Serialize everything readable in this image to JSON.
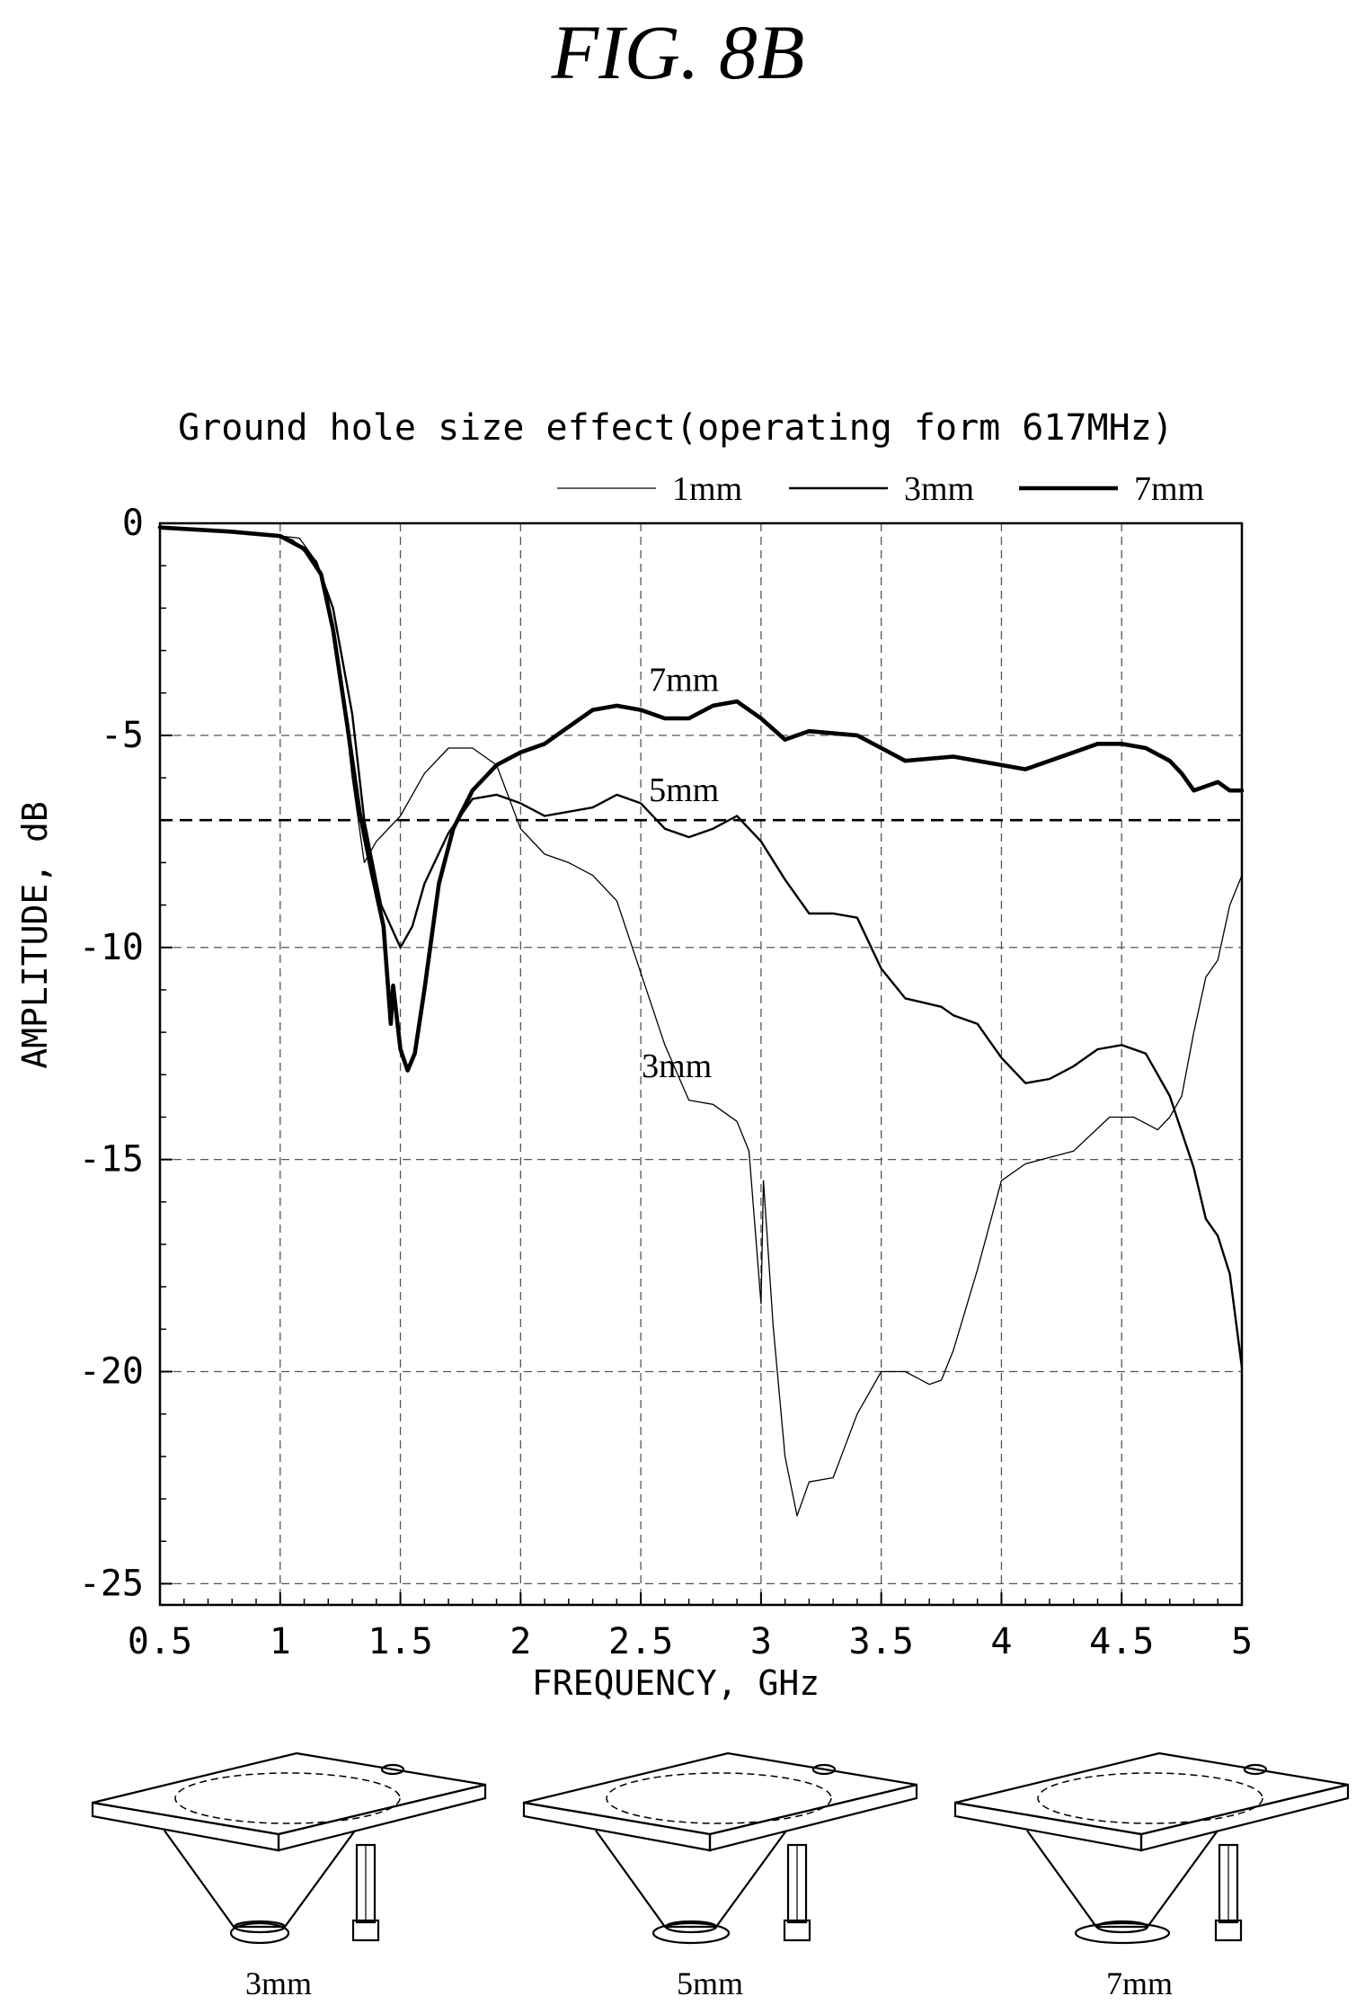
{
  "figure_label": "FIG. 8B",
  "chart_data": {
    "type": "line",
    "title": "Ground hole size effect(operating form 617MHz)",
    "xlabel": "FREQUENCY, GHz",
    "ylabel": "AMPLITUDE, dB",
    "xlim": [
      0.5,
      5
    ],
    "ylim": [
      -25.5,
      0
    ],
    "x_ticks": [
      0.5,
      1,
      1.5,
      2,
      2.5,
      3,
      3.5,
      4,
      4.5,
      5
    ],
    "x_tick_labels": [
      "0.5",
      "1",
      "1.5",
      "2",
      "2.5",
      "3",
      "3.5",
      "4",
      "4.5",
      "5"
    ],
    "y_ticks": [
      0,
      -5,
      -10,
      -15,
      -20,
      -25
    ],
    "y_tick_labels": [
      "0",
      "-5",
      "-10",
      "-15",
      "-20",
      "-25"
    ],
    "grid": true,
    "legend_position": "top-right",
    "legend": [
      {
        "label": "1mm",
        "weight": "thin"
      },
      {
        "label": "3mm",
        "weight": "medium"
      },
      {
        "label": "7mm",
        "weight": "thick"
      }
    ],
    "reference_line": {
      "y": -7,
      "style": "dashed"
    },
    "annotations": [
      {
        "text": "7mm",
        "x": 2.9,
        "y": -3.7
      },
      {
        "text": "5mm",
        "x": 2.9,
        "y": -6.3
      },
      {
        "text": "3mm",
        "x": 2.87,
        "y": -12.8
      }
    ],
    "series": [
      {
        "name": "1mm",
        "weight": "thin",
        "points": [
          [
            0.5,
            -0.1
          ],
          [
            0.8,
            -0.2
          ],
          [
            1.0,
            -0.3
          ],
          [
            1.08,
            -0.35
          ],
          [
            1.15,
            -0.9
          ],
          [
            1.2,
            -1.8
          ],
          [
            1.25,
            -3.5
          ],
          [
            1.3,
            -6.0
          ],
          [
            1.35,
            -8.0
          ],
          [
            1.4,
            -7.5
          ],
          [
            1.5,
            -6.9
          ],
          [
            1.6,
            -5.9
          ],
          [
            1.7,
            -5.3
          ],
          [
            1.8,
            -5.3
          ],
          [
            1.9,
            -5.7
          ],
          [
            2.0,
            -7.2
          ],
          [
            2.1,
            -7.8
          ],
          [
            2.2,
            -8.0
          ],
          [
            2.3,
            -8.3
          ],
          [
            2.4,
            -8.9
          ],
          [
            2.5,
            -10.6
          ],
          [
            2.6,
            -12.3
          ],
          [
            2.7,
            -13.6
          ],
          [
            2.8,
            -13.7
          ],
          [
            2.9,
            -14.1
          ],
          [
            2.95,
            -14.8
          ],
          [
            3.0,
            -18.4
          ],
          [
            3.01,
            -15.5
          ],
          [
            3.05,
            -18.9
          ],
          [
            3.1,
            -22.0
          ],
          [
            3.15,
            -23.4
          ],
          [
            3.2,
            -22.6
          ],
          [
            3.3,
            -22.5
          ],
          [
            3.4,
            -21.0
          ],
          [
            3.5,
            -20.0
          ],
          [
            3.6,
            -20.0
          ],
          [
            3.7,
            -20.3
          ],
          [
            3.75,
            -20.2
          ],
          [
            3.8,
            -19.5
          ],
          [
            3.9,
            -17.6
          ],
          [
            4.0,
            -15.5
          ],
          [
            4.1,
            -15.1
          ],
          [
            4.3,
            -14.8
          ],
          [
            4.45,
            -14.0
          ],
          [
            4.55,
            -14.0
          ],
          [
            4.65,
            -14.3
          ],
          [
            4.7,
            -14.0
          ],
          [
            4.75,
            -13.5
          ],
          [
            4.8,
            -12.0
          ],
          [
            4.85,
            -10.7
          ],
          [
            4.9,
            -10.3
          ],
          [
            4.95,
            -9.0
          ],
          [
            5.0,
            -8.3
          ]
        ]
      },
      {
        "name": "3mm",
        "weight": "medium",
        "points": [
          [
            0.5,
            -0.1
          ],
          [
            0.8,
            -0.2
          ],
          [
            1.0,
            -0.3
          ],
          [
            1.05,
            -0.4
          ],
          [
            1.15,
            -0.9
          ],
          [
            1.22,
            -2.0
          ],
          [
            1.3,
            -4.5
          ],
          [
            1.35,
            -7.0
          ],
          [
            1.42,
            -9.0
          ],
          [
            1.5,
            -10.0
          ],
          [
            1.55,
            -9.5
          ],
          [
            1.6,
            -8.5
          ],
          [
            1.7,
            -7.3
          ],
          [
            1.8,
            -6.5
          ],
          [
            1.9,
            -6.4
          ],
          [
            2.0,
            -6.6
          ],
          [
            2.1,
            -6.9
          ],
          [
            2.2,
            -6.8
          ],
          [
            2.3,
            -6.7
          ],
          [
            2.4,
            -6.4
          ],
          [
            2.5,
            -6.6
          ],
          [
            2.6,
            -7.2
          ],
          [
            2.7,
            -7.4
          ],
          [
            2.8,
            -7.2
          ],
          [
            2.9,
            -6.9
          ],
          [
            3.0,
            -7.5
          ],
          [
            3.1,
            -8.4
          ],
          [
            3.2,
            -9.2
          ],
          [
            3.3,
            -9.2
          ],
          [
            3.4,
            -9.3
          ],
          [
            3.5,
            -10.5
          ],
          [
            3.6,
            -11.2
          ],
          [
            3.75,
            -11.4
          ],
          [
            3.8,
            -11.6
          ],
          [
            3.9,
            -11.8
          ],
          [
            4.0,
            -12.6
          ],
          [
            4.1,
            -13.2
          ],
          [
            4.2,
            -13.1
          ],
          [
            4.3,
            -12.8
          ],
          [
            4.4,
            -12.4
          ],
          [
            4.5,
            -12.3
          ],
          [
            4.6,
            -12.5
          ],
          [
            4.7,
            -13.5
          ],
          [
            4.8,
            -15.2
          ],
          [
            4.85,
            -16.4
          ],
          [
            4.9,
            -16.8
          ],
          [
            4.95,
            -17.7
          ],
          [
            5.0,
            -19.9
          ]
        ]
      },
      {
        "name": "7mm",
        "weight": "thick",
        "points": [
          [
            0.5,
            -0.1
          ],
          [
            0.8,
            -0.2
          ],
          [
            1.0,
            -0.3
          ],
          [
            1.1,
            -0.6
          ],
          [
            1.17,
            -1.2
          ],
          [
            1.22,
            -2.5
          ],
          [
            1.28,
            -4.8
          ],
          [
            1.33,
            -6.8
          ],
          [
            1.38,
            -8.2
          ],
          [
            1.43,
            -9.5
          ],
          [
            1.46,
            -11.8
          ],
          [
            1.47,
            -10.9
          ],
          [
            1.5,
            -12.4
          ],
          [
            1.53,
            -12.9
          ],
          [
            1.56,
            -12.5
          ],
          [
            1.6,
            -11.0
          ],
          [
            1.66,
            -8.5
          ],
          [
            1.72,
            -7.2
          ],
          [
            1.8,
            -6.3
          ],
          [
            1.9,
            -5.7
          ],
          [
            2.0,
            -5.4
          ],
          [
            2.1,
            -5.2
          ],
          [
            2.2,
            -4.8
          ],
          [
            2.3,
            -4.4
          ],
          [
            2.4,
            -4.3
          ],
          [
            2.5,
            -4.4
          ],
          [
            2.6,
            -4.6
          ],
          [
            2.7,
            -4.6
          ],
          [
            2.8,
            -4.3
          ],
          [
            2.9,
            -4.2
          ],
          [
            3.0,
            -4.6
          ],
          [
            3.1,
            -5.1
          ],
          [
            3.2,
            -4.9
          ],
          [
            3.4,
            -5.0
          ],
          [
            3.5,
            -5.3
          ],
          [
            3.6,
            -5.6
          ],
          [
            3.8,
            -5.5
          ],
          [
            4.0,
            -5.7
          ],
          [
            4.1,
            -5.8
          ],
          [
            4.3,
            -5.4
          ],
          [
            4.4,
            -5.2
          ],
          [
            4.5,
            -5.2
          ],
          [
            4.6,
            -5.3
          ],
          [
            4.7,
            -5.6
          ],
          [
            4.75,
            -5.9
          ],
          [
            4.8,
            -6.3
          ],
          [
            4.85,
            -6.2
          ],
          [
            4.9,
            -6.1
          ],
          [
            4.95,
            -6.3
          ],
          [
            5.0,
            -6.3
          ]
        ]
      }
    ]
  },
  "illustrations": [
    {
      "caption": "3mm",
      "hole_size": "3mm"
    },
    {
      "caption": "5mm",
      "hole_size": "5mm"
    },
    {
      "caption": "7mm",
      "hole_size": "7mm"
    }
  ]
}
